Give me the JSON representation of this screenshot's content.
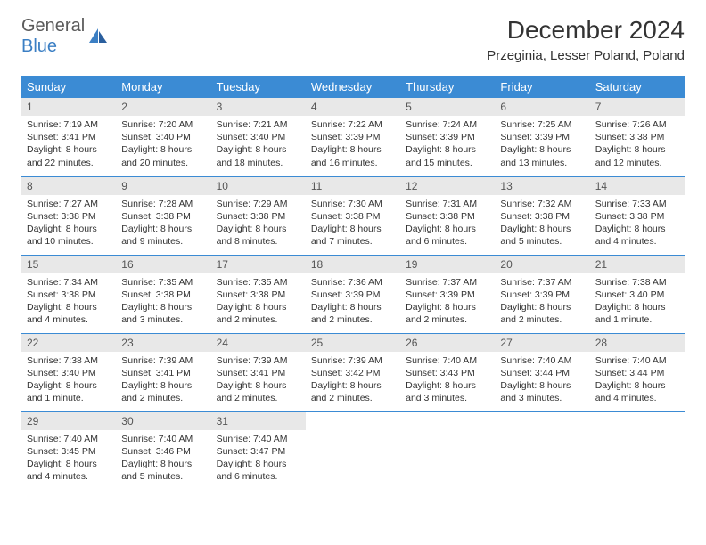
{
  "brand": {
    "part1": "General",
    "part2": "Blue"
  },
  "title": "December 2024",
  "location": "Przeginia, Lesser Poland, Poland",
  "colors": {
    "header_bg": "#3b8bd4",
    "header_text": "#ffffff",
    "daynum_bg": "#e8e8e8",
    "border": "#3b8bd4",
    "logo_gray": "#5a5a5a",
    "logo_blue": "#3b7fc4"
  },
  "daysOfWeek": [
    "Sunday",
    "Monday",
    "Tuesday",
    "Wednesday",
    "Thursday",
    "Friday",
    "Saturday"
  ],
  "days": [
    {
      "n": "1",
      "sunrise": "7:19 AM",
      "sunset": "3:41 PM",
      "daylight": "8 hours and 22 minutes."
    },
    {
      "n": "2",
      "sunrise": "7:20 AM",
      "sunset": "3:40 PM",
      "daylight": "8 hours and 20 minutes."
    },
    {
      "n": "3",
      "sunrise": "7:21 AM",
      "sunset": "3:40 PM",
      "daylight": "8 hours and 18 minutes."
    },
    {
      "n": "4",
      "sunrise": "7:22 AM",
      "sunset": "3:39 PM",
      "daylight": "8 hours and 16 minutes."
    },
    {
      "n": "5",
      "sunrise": "7:24 AM",
      "sunset": "3:39 PM",
      "daylight": "8 hours and 15 minutes."
    },
    {
      "n": "6",
      "sunrise": "7:25 AM",
      "sunset": "3:39 PM",
      "daylight": "8 hours and 13 minutes."
    },
    {
      "n": "7",
      "sunrise": "7:26 AM",
      "sunset": "3:38 PM",
      "daylight": "8 hours and 12 minutes."
    },
    {
      "n": "8",
      "sunrise": "7:27 AM",
      "sunset": "3:38 PM",
      "daylight": "8 hours and 10 minutes."
    },
    {
      "n": "9",
      "sunrise": "7:28 AM",
      "sunset": "3:38 PM",
      "daylight": "8 hours and 9 minutes."
    },
    {
      "n": "10",
      "sunrise": "7:29 AM",
      "sunset": "3:38 PM",
      "daylight": "8 hours and 8 minutes."
    },
    {
      "n": "11",
      "sunrise": "7:30 AM",
      "sunset": "3:38 PM",
      "daylight": "8 hours and 7 minutes."
    },
    {
      "n": "12",
      "sunrise": "7:31 AM",
      "sunset": "3:38 PM",
      "daylight": "8 hours and 6 minutes."
    },
    {
      "n": "13",
      "sunrise": "7:32 AM",
      "sunset": "3:38 PM",
      "daylight": "8 hours and 5 minutes."
    },
    {
      "n": "14",
      "sunrise": "7:33 AM",
      "sunset": "3:38 PM",
      "daylight": "8 hours and 4 minutes."
    },
    {
      "n": "15",
      "sunrise": "7:34 AM",
      "sunset": "3:38 PM",
      "daylight": "8 hours and 4 minutes."
    },
    {
      "n": "16",
      "sunrise": "7:35 AM",
      "sunset": "3:38 PM",
      "daylight": "8 hours and 3 minutes."
    },
    {
      "n": "17",
      "sunrise": "7:35 AM",
      "sunset": "3:38 PM",
      "daylight": "8 hours and 2 minutes."
    },
    {
      "n": "18",
      "sunrise": "7:36 AM",
      "sunset": "3:39 PM",
      "daylight": "8 hours and 2 minutes."
    },
    {
      "n": "19",
      "sunrise": "7:37 AM",
      "sunset": "3:39 PM",
      "daylight": "8 hours and 2 minutes."
    },
    {
      "n": "20",
      "sunrise": "7:37 AM",
      "sunset": "3:39 PM",
      "daylight": "8 hours and 2 minutes."
    },
    {
      "n": "21",
      "sunrise": "7:38 AM",
      "sunset": "3:40 PM",
      "daylight": "8 hours and 1 minute."
    },
    {
      "n": "22",
      "sunrise": "7:38 AM",
      "sunset": "3:40 PM",
      "daylight": "8 hours and 1 minute."
    },
    {
      "n": "23",
      "sunrise": "7:39 AM",
      "sunset": "3:41 PM",
      "daylight": "8 hours and 2 minutes."
    },
    {
      "n": "24",
      "sunrise": "7:39 AM",
      "sunset": "3:41 PM",
      "daylight": "8 hours and 2 minutes."
    },
    {
      "n": "25",
      "sunrise": "7:39 AM",
      "sunset": "3:42 PM",
      "daylight": "8 hours and 2 minutes."
    },
    {
      "n": "26",
      "sunrise": "7:40 AM",
      "sunset": "3:43 PM",
      "daylight": "8 hours and 3 minutes."
    },
    {
      "n": "27",
      "sunrise": "7:40 AM",
      "sunset": "3:44 PM",
      "daylight": "8 hours and 3 minutes."
    },
    {
      "n": "28",
      "sunrise": "7:40 AM",
      "sunset": "3:44 PM",
      "daylight": "8 hours and 4 minutes."
    },
    {
      "n": "29",
      "sunrise": "7:40 AM",
      "sunset": "3:45 PM",
      "daylight": "8 hours and 4 minutes."
    },
    {
      "n": "30",
      "sunrise": "7:40 AM",
      "sunset": "3:46 PM",
      "daylight": "8 hours and 5 minutes."
    },
    {
      "n": "31",
      "sunrise": "7:40 AM",
      "sunset": "3:47 PM",
      "daylight": "8 hours and 6 minutes."
    }
  ],
  "labels": {
    "sunrise": "Sunrise: ",
    "sunset": "Sunset: ",
    "daylight": "Daylight: "
  }
}
